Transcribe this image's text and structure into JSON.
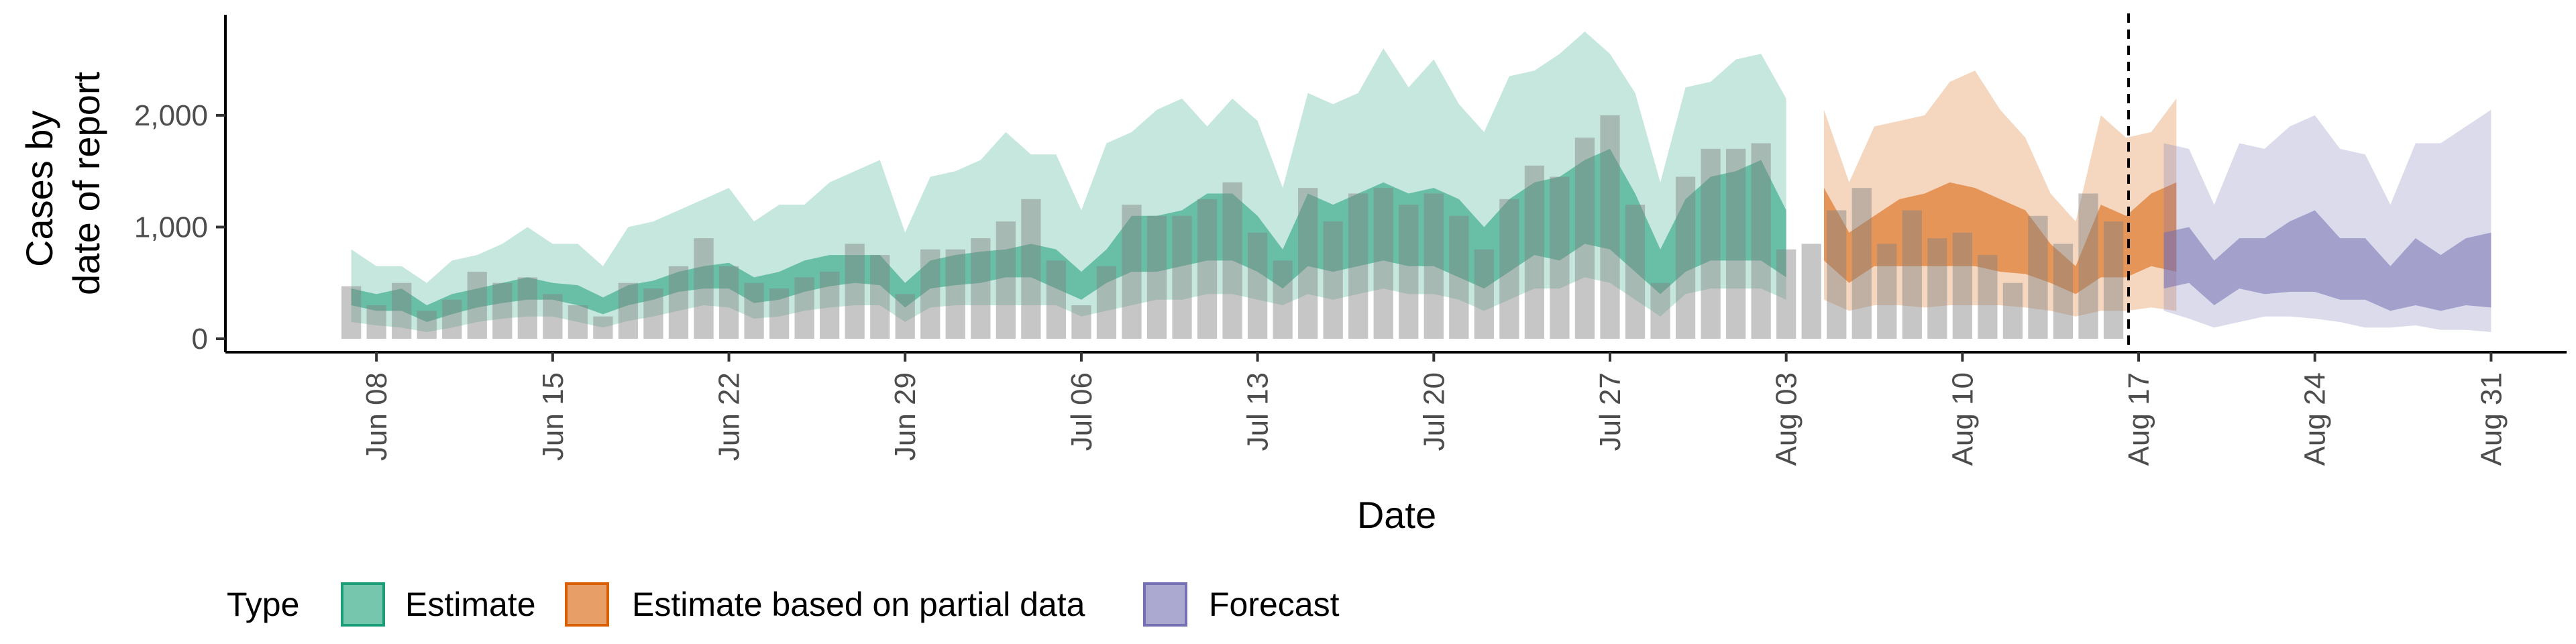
{
  "chart_data": {
    "type": "bar",
    "xlabel": "Date",
    "ylabel_lines": [
      "Cases by",
      "date of report"
    ],
    "x_tick_labels": [
      "Jun 08",
      "Jun 15",
      "Jun 22",
      "Jun 29",
      "Jul 06",
      "Jul 13",
      "Jul 20",
      "Jul 27",
      "Aug 03",
      "Aug 10",
      "Aug 17",
      "Aug 24",
      "Aug 31"
    ],
    "x_tick_days": [
      0,
      7,
      14,
      21,
      28,
      35,
      42,
      49,
      56,
      63,
      70,
      77,
      84
    ],
    "y_ticks": [
      0,
      1000,
      2000
    ],
    "y_tick_labels": [
      "0",
      "1,000",
      "2,000"
    ],
    "ylim": [
      -120,
      2900
    ],
    "xlim_days": [
      -6,
      87
    ],
    "first_day": -1,
    "vline_day": 69.6,
    "reported_cases": [
      470,
      300,
      500,
      250,
      350,
      600,
      500,
      550,
      400,
      300,
      200,
      500,
      450,
      650,
      900,
      650,
      500,
      450,
      550,
      600,
      850,
      750,
      400,
      800,
      800,
      900,
      1050,
      1250,
      700,
      300,
      650,
      1200,
      1100,
      1100,
      1250,
      1400,
      950,
      700,
      1350,
      1050,
      1300,
      1350,
      1200,
      1300,
      1100,
      800,
      1250,
      1550,
      1450,
      1800,
      2000,
      1200,
      500,
      1450,
      1700,
      1700,
      1750,
      800,
      850,
      1150,
      1350,
      850,
      1150,
      900,
      950,
      750,
      500,
      1100,
      850,
      1300,
      1050
    ],
    "legend": {
      "title": "Type",
      "items": [
        {
          "label": "Estimate",
          "fill": "#1b9e77",
          "stroke": "#1b9e77"
        },
        {
          "label": "Estimate based on partial data",
          "fill": "#d95f02",
          "stroke": "#d95f02"
        },
        {
          "label": "Forecast",
          "fill": "#7570b3",
          "stroke": "#7570b3"
        }
      ]
    },
    "series": [
      {
        "name": "Estimate",
        "color": "#1b9e77",
        "x_start_day": -1,
        "lower90": [
          150,
          120,
          100,
          60,
          100,
          150,
          180,
          200,
          200,
          150,
          100,
          160,
          200,
          250,
          300,
          280,
          180,
          200,
          250,
          280,
          300,
          300,
          150,
          280,
          300,
          300,
          300,
          300,
          300,
          200,
          250,
          300,
          350,
          350,
          400,
          400,
          350,
          300,
          400,
          350,
          400,
          450,
          400,
          400,
          350,
          250,
          350,
          450,
          450,
          550,
          500,
          350,
          200,
          400,
          450,
          450,
          450,
          350
        ],
        "lower50": [
          300,
          250,
          250,
          150,
          220,
          280,
          320,
          350,
          350,
          300,
          220,
          300,
          350,
          420,
          450,
          450,
          320,
          350,
          420,
          470,
          500,
          480,
          280,
          450,
          480,
          500,
          550,
          550,
          450,
          350,
          500,
          600,
          600,
          650,
          700,
          700,
          600,
          450,
          650,
          600,
          650,
          700,
          650,
          650,
          550,
          450,
          600,
          750,
          700,
          850,
          800,
          600,
          400,
          600,
          700,
          700,
          700,
          550
        ],
        "upper50": [
          450,
          400,
          450,
          300,
          400,
          450,
          500,
          550,
          500,
          480,
          370,
          480,
          520,
          600,
          650,
          680,
          550,
          600,
          700,
          750,
          750,
          750,
          500,
          700,
          750,
          780,
          800,
          850,
          800,
          600,
          800,
          1100,
          1100,
          1150,
          1300,
          1300,
          1100,
          800,
          1300,
          1200,
          1300,
          1400,
          1300,
          1350,
          1250,
          1000,
          1250,
          1400,
          1450,
          1600,
          1700,
          1300,
          800,
          1250,
          1450,
          1500,
          1600,
          1150
        ],
        "upper90": [
          800,
          650,
          650,
          500,
          700,
          750,
          850,
          1000,
          850,
          850,
          650,
          1000,
          1050,
          1150,
          1250,
          1350,
          1050,
          1200,
          1200,
          1400,
          1500,
          1600,
          950,
          1450,
          1500,
          1600,
          1850,
          1650,
          1650,
          1150,
          1750,
          1850,
          2050,
          2150,
          1900,
          2150,
          1950,
          1350,
          2200,
          2100,
          2200,
          2600,
          2250,
          2500,
          2100,
          1850,
          2350,
          2400,
          2550,
          2750,
          2550,
          2200,
          1400,
          2250,
          2300,
          2500,
          2550,
          2150
        ]
      },
      {
        "name": "Estimate based on partial data",
        "color": "#d95f02",
        "x_start_day": 57.5,
        "lower90": [
          350,
          250,
          300,
          300,
          280,
          300,
          300,
          300,
          280,
          250,
          200,
          250,
          250,
          280,
          250
        ],
        "lower50": [
          700,
          500,
          650,
          650,
          650,
          650,
          650,
          600,
          580,
          500,
          400,
          550,
          550,
          650,
          600
        ],
        "upper50": [
          1350,
          950,
          1100,
          1250,
          1300,
          1400,
          1350,
          1250,
          1150,
          850,
          650,
          1200,
          1100,
          1300,
          1400
        ],
        "upper90": [
          2050,
          1400,
          1900,
          1950,
          2000,
          2300,
          2400,
          2050,
          1800,
          1300,
          1050,
          2000,
          1800,
          1850,
          2150
        ]
      },
      {
        "name": "Forecast",
        "color": "#7570b3",
        "x_start_day": 71,
        "lower90": [
          250,
          180,
          100,
          150,
          200,
          200,
          180,
          150,
          100,
          100,
          120,
          80,
          80,
          60
        ],
        "lower50": [
          450,
          500,
          300,
          450,
          400,
          420,
          420,
          350,
          350,
          250,
          300,
          250,
          300,
          280
        ],
        "upper50": [
          950,
          1000,
          700,
          900,
          900,
          1050,
          1150,
          900,
          900,
          650,
          900,
          750,
          900,
          950
        ],
        "upper90": [
          1750,
          1700,
          1200,
          1750,
          1700,
          1900,
          2000,
          1700,
          1650,
          1200,
          1750,
          1750,
          1900,
          2050
        ]
      }
    ]
  }
}
